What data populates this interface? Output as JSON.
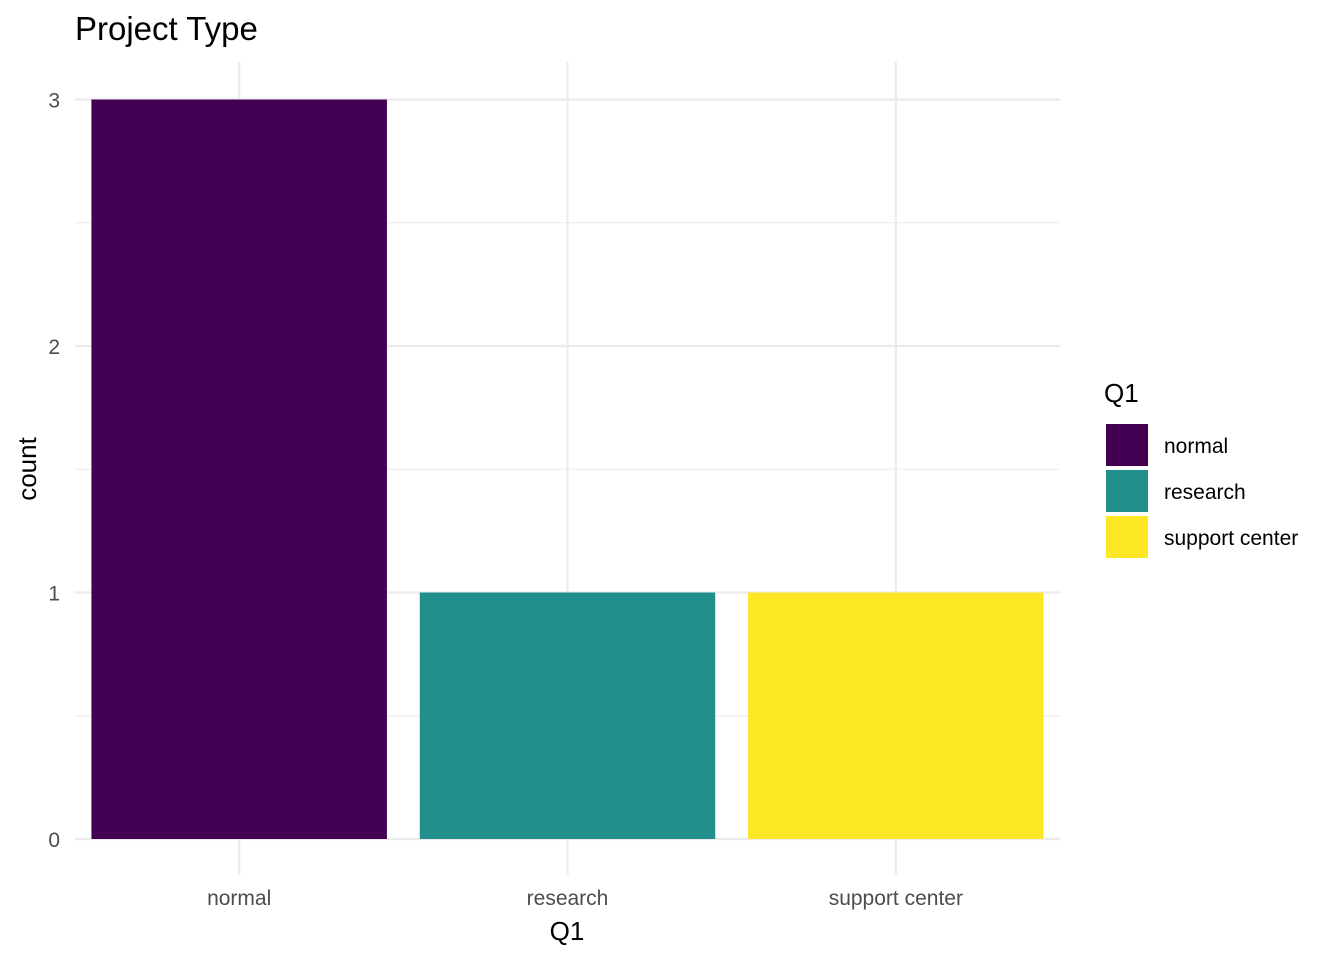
{
  "chart_data": {
    "type": "bar",
    "title": "Project Type",
    "xlabel": "Q1",
    "ylabel": "count",
    "categories": [
      "normal",
      "research",
      "support center"
    ],
    "values": [
      3,
      1,
      1
    ],
    "colors": [
      "#440154",
      "#21908c",
      "#fde725"
    ],
    "ylim": [
      0,
      3
    ],
    "yticks": [
      "0",
      "1",
      "2",
      "3"
    ],
    "grid": true,
    "legend": {
      "title": "Q1",
      "position": "right",
      "items": [
        {
          "label": "normal",
          "color": "#440154"
        },
        {
          "label": "research",
          "color": "#21908c"
        },
        {
          "label": "support center",
          "color": "#fde725"
        }
      ]
    }
  }
}
